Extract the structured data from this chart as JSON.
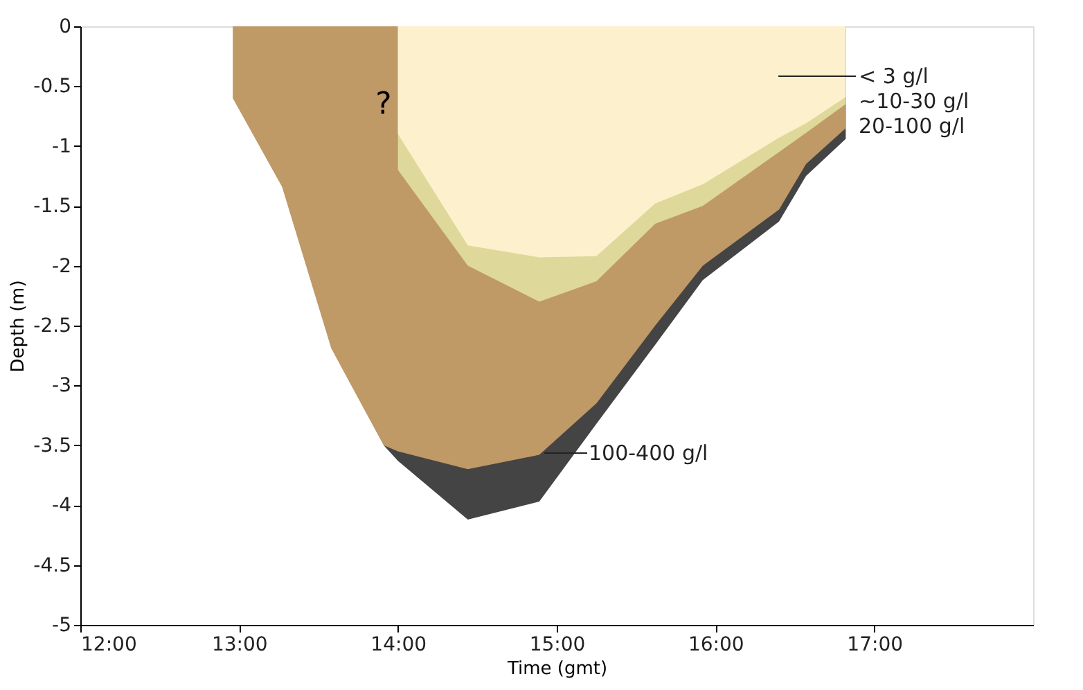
{
  "chart_data": {
    "type": "area",
    "xlabel": "Time (gmt)",
    "ylabel": "Depth (m)",
    "series": [
      {
        "name": "< 3 g/l",
        "color": "#fdf0cc",
        "x": [
          14.0,
          14.44,
          14.89,
          15.25,
          15.62,
          15.92,
          16.4,
          16.57,
          16.82
        ],
        "values": [
          -0.9,
          -1.83,
          -1.93,
          -1.92,
          -1.48,
          -1.32,
          -0.93,
          -0.81,
          -0.59
        ]
      },
      {
        "name": "~10-30 g/l",
        "color": "#ded89a",
        "x": [
          14.0,
          14.44,
          14.89,
          15.25,
          15.62,
          15.92,
          16.4,
          16.57,
          16.82
        ],
        "values": [
          -1.2,
          -2.0,
          -2.3,
          -2.13,
          -1.65,
          -1.5,
          -1.05,
          -0.89,
          -0.65
        ]
      },
      {
        "name": "20-100 g/l",
        "color": "#bf9966",
        "x": [
          12.96,
          13.27,
          13.58,
          13.91,
          14.0,
          14.44,
          14.89,
          15.25,
          15.62,
          15.92,
          16.4,
          16.57,
          16.82
        ],
        "values": [
          -0.6,
          -1.34,
          -2.69,
          -3.5,
          -3.55,
          -3.7,
          -3.58,
          -3.15,
          -2.5,
          -2.0,
          -1.53,
          -1.15,
          -0.85
        ]
      },
      {
        "name": "100-400 g/l",
        "color": "#444444",
        "x": [
          13.91,
          14.0,
          14.44,
          14.89,
          15.25,
          15.62,
          15.92,
          16.4,
          16.57,
          16.82
        ],
        "values": [
          -3.5,
          -3.63,
          -4.12,
          -3.97,
          -3.32,
          -2.66,
          -2.12,
          -1.63,
          -1.25,
          -0.94
        ]
      }
    ],
    "annotations": [
      "?"
    ],
    "xlim": [
      12,
      18
    ],
    "xticks": [
      {
        "value": 12,
        "label": "12:00"
      },
      {
        "value": 13,
        "label": "13:00"
      },
      {
        "value": 14,
        "label": "14:00"
      },
      {
        "value": 15,
        "label": "15:00"
      },
      {
        "value": 16,
        "label": "16:00"
      },
      {
        "value": 17,
        "label": "17:00"
      }
    ],
    "ylim": [
      -5,
      0
    ],
    "yticks": [
      {
        "value": -5,
        "label": "-5"
      },
      {
        "value": -4.5,
        "label": "-4.5"
      },
      {
        "value": -4,
        "label": "-4"
      },
      {
        "value": -3.5,
        "label": "-3.5"
      },
      {
        "value": -3,
        "label": "-3"
      },
      {
        "value": -2.5,
        "label": "-2.5"
      },
      {
        "value": -2,
        "label": "-2"
      },
      {
        "value": -1.5,
        "label": "-1.5"
      },
      {
        "value": -1,
        "label": "-1"
      },
      {
        "value": -0.5,
        "label": "-0.5"
      },
      {
        "value": 0,
        "label": "0"
      }
    ],
    "grid": false
  }
}
